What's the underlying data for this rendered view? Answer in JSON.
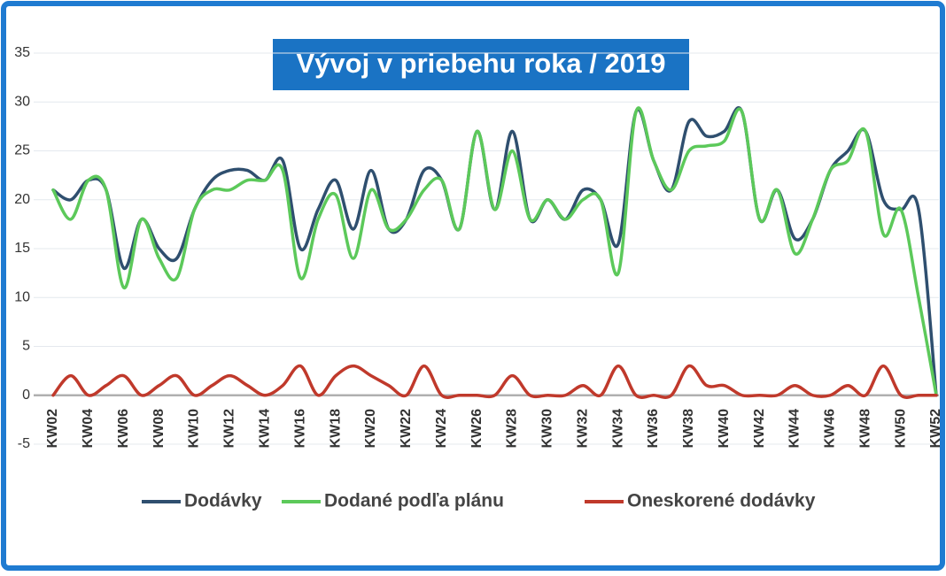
{
  "chart_data": {
    "type": "line",
    "title": "Vývoj v priebehu roka / 2019",
    "categories": [
      "KW02",
      null,
      "KW04",
      null,
      "KW06",
      null,
      "KW08",
      null,
      "KW10",
      null,
      "KW12",
      null,
      "KW14",
      null,
      "KW16",
      null,
      "KW18",
      null,
      "KW20",
      null,
      "KW22",
      null,
      "KW24",
      null,
      "KW26",
      null,
      "KW28",
      null,
      "KW30",
      null,
      "KW32",
      null,
      "KW34",
      null,
      "KW36",
      null,
      "KW38",
      null,
      "KW40",
      null,
      "KW42",
      null,
      "KW44",
      null,
      "KW46",
      null,
      "KW48",
      null,
      "KW50",
      null,
      "KW52"
    ],
    "series": [
      {
        "name": "Dodávky",
        "color": "#2f4f6f",
        "values": [
          21,
          20,
          22,
          21,
          13,
          18,
          15,
          14,
          19,
          22,
          23,
          23,
          22,
          24,
          15,
          19,
          22,
          17,
          23,
          17,
          18,
          23,
          22,
          17,
          27,
          19,
          27,
          18,
          20,
          18,
          21,
          20,
          15.5,
          29,
          24,
          21,
          28,
          26.5,
          27,
          29,
          18,
          21,
          16,
          18,
          23,
          25,
          27,
          20,
          19,
          19,
          0
        ]
      },
      {
        "name": "Dodané podľa plánu",
        "color": "#5cc95a",
        "values": [
          21,
          18,
          22,
          21,
          11,
          18,
          14,
          12,
          19,
          21,
          21,
          22,
          22,
          23,
          12,
          18,
          20.5,
          14,
          21,
          17,
          18,
          21,
          22,
          17,
          27,
          19,
          25,
          18,
          20,
          18,
          20,
          20,
          12.5,
          29,
          24,
          21,
          25,
          25.5,
          26,
          29,
          18,
          21,
          14.5,
          18,
          23,
          24,
          27,
          16.5,
          19,
          10,
          0
        ]
      },
      {
        "name": "Oneskorené dodávky",
        "color": "#c0392b",
        "values": [
          0,
          2,
          0,
          1,
          2,
          0,
          1,
          2,
          0,
          1,
          2,
          1,
          0,
          1,
          3,
          0,
          2,
          3,
          2,
          1,
          0,
          3,
          0,
          0,
          0,
          0,
          2,
          0,
          0,
          0,
          1,
          0,
          3,
          0,
          0,
          0,
          3,
          1,
          1,
          0,
          0,
          0,
          1,
          0,
          0,
          1,
          0,
          3,
          0,
          0,
          0
        ]
      }
    ],
    "ylim": [
      -5,
      35
    ],
    "yticks": [
      -5,
      0,
      5,
      10,
      15,
      20,
      25,
      30,
      35
    ],
    "grid": true,
    "legend": "bottom"
  }
}
